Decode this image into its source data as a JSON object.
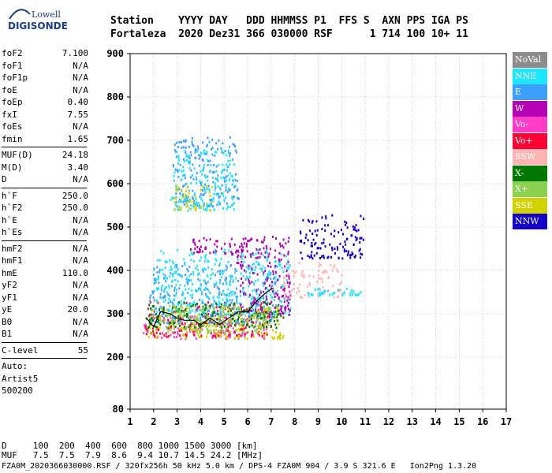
{
  "logo": {
    "top_text": "Lowell",
    "bottom_text": "DIGISONDE"
  },
  "header": {
    "line1": "Station    YYYY DAY   DDD HHMMSS P1  FFS S  AXN PPS IGA PS",
    "line2": "Fortaleza  2020 Dez31 366 030000 RSF      1 714 100 10+ 11"
  },
  "params_group1": [
    {
      "key": "foF2",
      "value": "7.100"
    },
    {
      "key": "foF1",
      "value": "N/A"
    },
    {
      "key": "foF1p",
      "value": "N/A"
    },
    {
      "key": "foE",
      "value": "N/A"
    },
    {
      "key": "foEp",
      "value": "0.40"
    },
    {
      "key": "fxI",
      "value": "7.55"
    },
    {
      "key": "foEs",
      "value": "N/A"
    },
    {
      "key": "fmin",
      "value": "1.65"
    }
  ],
  "params_group2": [
    {
      "key": "MUF(D)",
      "value": "24.18"
    },
    {
      "key": "M(D)",
      "value": "3.40"
    },
    {
      "key": "D",
      "value": "N/A"
    }
  ],
  "params_group3": [
    {
      "key": "h`F",
      "value": "250.0"
    },
    {
      "key": "h`F2",
      "value": "250.0"
    },
    {
      "key": "h`E",
      "value": "N/A"
    },
    {
      "key": "h`Es",
      "value": "N/A"
    }
  ],
  "params_group4": [
    {
      "key": "hmF2",
      "value": "N/A"
    },
    {
      "key": "hmF1",
      "value": "N/A"
    },
    {
      "key": "hmE",
      "value": "110.0"
    },
    {
      "key": "yF2",
      "value": "N/A"
    },
    {
      "key": "yF1",
      "value": "N/A"
    },
    {
      "key": "yE",
      "value": "20.0"
    },
    {
      "key": "B0",
      "value": "N/A"
    },
    {
      "key": "B1",
      "value": "N/A"
    }
  ],
  "params_group5": [
    {
      "key": "C-level",
      "value": "55"
    }
  ],
  "auto": {
    "line1": "Auto:",
    "line2": "Artist5",
    "line3": "500200"
  },
  "legend": [
    {
      "label": "NoVal",
      "color": "#8c8c8c"
    },
    {
      "label": "NNE",
      "color": "#1ee6ff"
    },
    {
      "label": "E",
      "color": "#3ca0ff"
    },
    {
      "label": "W",
      "color": "#b400b4"
    },
    {
      "label": "Vo-",
      "color": "#ff3cc8"
    },
    {
      "label": "Vo+",
      "color": "#ff0032"
    },
    {
      "label": "SSW",
      "color": "#ffb4b4"
    },
    {
      "label": "X-",
      "color": "#007800"
    },
    {
      "label": "X+",
      "color": "#8cd250"
    },
    {
      "label": "SSE",
      "color": "#d2d200"
    },
    {
      "label": "NNW",
      "color": "#1400c8"
    }
  ],
  "footer": {
    "line1": "D     100  200  400  600  800 1000 1500 3000 [km]",
    "line2": "MUF   7.5  7.5  7.9  8.6  9.4 10.7 14.5 24.2 [MHz]"
  },
  "filebar": "FZA0M_2020366030000.RSF / 320fx256h 50 kHz 5.0 km / DPS-4 FZA0M 904 / 3.9 S 321.6 E   Ion2Png 1.3.20",
  "chart_data": {
    "type": "scatter",
    "title": "",
    "xlabel": "",
    "ylabel": "",
    "xlim": [
      1,
      17
    ],
    "ylim": [
      80,
      900
    ],
    "x_ticks": [
      "1",
      "2",
      "3",
      "4",
      "5",
      "6",
      "7",
      "8",
      "9",
      "10",
      "11",
      "12",
      "13",
      "14",
      "15",
      "16",
      "17"
    ],
    "y_ticks": [
      "80",
      "200",
      "300",
      "400",
      "500",
      "600",
      "700",
      "800",
      "900"
    ],
    "grid": true,
    "legend_position": "right",
    "trace_line": {
      "name": "",
      "color": "#000000",
      "points": [
        [
          1.7,
          290
        ],
        [
          2.0,
          270
        ],
        [
          2.3,
          305
        ],
        [
          2.7,
          300
        ],
        [
          3.0,
          290
        ],
        [
          3.3,
          285
        ],
        [
          3.7,
          285
        ],
        [
          4.0,
          275
        ],
        [
          4.4,
          290
        ],
        [
          4.8,
          275
        ],
        [
          5.2,
          290
        ],
        [
          5.6,
          305
        ],
        [
          6.0,
          305
        ],
        [
          6.4,
          330
        ],
        [
          6.8,
          350
        ],
        [
          7.1,
          360
        ]
      ]
    },
    "regions": [
      {
        "color": "#ff3cc8",
        "x": [
          1.5,
          6.8
        ],
        "y": [
          245,
          300
        ]
      },
      {
        "color": "#ff0032",
        "x": [
          1.6,
          7.0
        ],
        "y": [
          250,
          330
        ]
      },
      {
        "color": "#3ca0ff",
        "x": [
          1.8,
          7.3
        ],
        "y": [
          280,
          420
        ]
      },
      {
        "color": "#1ee6ff",
        "x": [
          2.0,
          7.8
        ],
        "y": [
          300,
          450
        ]
      },
      {
        "color": "#b400b4",
        "x": [
          5.5,
          7.8
        ],
        "y": [
          300,
          480
        ]
      },
      {
        "color": "#d2d200",
        "x": [
          1.7,
          7.5
        ],
        "y": [
          245,
          320
        ]
      },
      {
        "color": "#3ca0ff",
        "x": [
          2.8,
          5.6
        ],
        "y": [
          550,
          710
        ]
      },
      {
        "color": "#1ee6ff",
        "x": [
          2.7,
          5.4
        ],
        "y": [
          540,
          680
        ]
      },
      {
        "color": "#d2d200",
        "x": [
          2.8,
          4.5
        ],
        "y": [
          540,
          600
        ]
      },
      {
        "color": "#b400b4",
        "x": [
          3.5,
          6.5
        ],
        "y": [
          440,
          480
        ]
      },
      {
        "color": "#ffb4b4",
        "x": [
          7.5,
          10.0
        ],
        "y": [
          340,
          420
        ]
      },
      {
        "color": "#1ee6ff",
        "x": [
          8.5,
          10.8
        ],
        "y": [
          345,
          360
        ]
      },
      {
        "color": "#1400c8",
        "x": [
          8.2,
          10.9
        ],
        "y": [
          430,
          530
        ]
      },
      {
        "color": "#007800",
        "x": [
          1.6,
          7.5
        ],
        "y": [
          270,
          330
        ]
      },
      {
        "color": "#8cd250",
        "x": [
          2.5,
          7.0
        ],
        "y": [
          260,
          320
        ]
      }
    ]
  }
}
